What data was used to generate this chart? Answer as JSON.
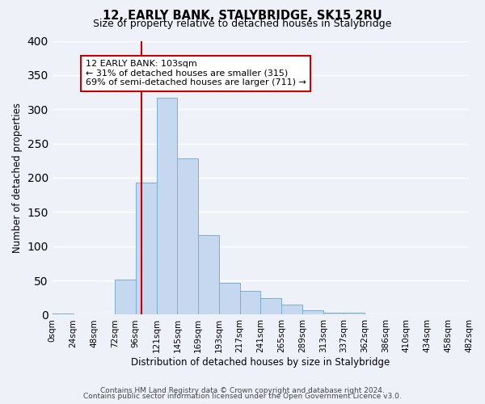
{
  "title": "12, EARLY BANK, STALYBRIDGE, SK15 2RU",
  "subtitle": "Size of property relative to detached houses in Stalybridge",
  "xlabel": "Distribution of detached houses by size in Stalybridge",
  "ylabel": "Number of detached properties",
  "bar_color": "#c5d8f0",
  "bar_edge_color": "#7baed4",
  "background_color": "#eef2f8",
  "grid_color": "#ffffff",
  "bin_edges": [
    0,
    24,
    48,
    72,
    96,
    120,
    144,
    168,
    192,
    216,
    240,
    264,
    288,
    312,
    336,
    360,
    384,
    408,
    432,
    456,
    480
  ],
  "bin_labels": [
    "0sqm",
    "24sqm",
    "48sqm",
    "72sqm",
    "96sqm",
    "121sqm",
    "145sqm",
    "169sqm",
    "193sqm",
    "217sqm",
    "241sqm",
    "265sqm",
    "289sqm",
    "313sqm",
    "337sqm",
    "362sqm",
    "386sqm",
    "410sqm",
    "434sqm",
    "458sqm",
    "482sqm"
  ],
  "bar_heights": [
    2,
    0,
    0,
    51,
    193,
    317,
    228,
    116,
    46,
    35,
    24,
    15,
    6,
    3,
    3,
    1,
    0,
    0,
    0,
    1
  ],
  "property_size": 103,
  "property_label": "12 EARLY BANK: 103sqm",
  "annotation_line1": "← 31% of detached houses are smaller (315)",
  "annotation_line2": "69% of semi-detached houses are larger (711) →",
  "annotation_box_color": "#ffffff",
  "annotation_box_edge_color": "#cc0000",
  "red_line_color": "#cc0000",
  "ylim": [
    0,
    400
  ],
  "yticks": [
    0,
    50,
    100,
    150,
    200,
    250,
    300,
    350,
    400
  ],
  "footer_line1": "Contains HM Land Registry data © Crown copyright and database right 2024.",
  "footer_line2": "Contains public sector information licensed under the Open Government Licence v3.0."
}
